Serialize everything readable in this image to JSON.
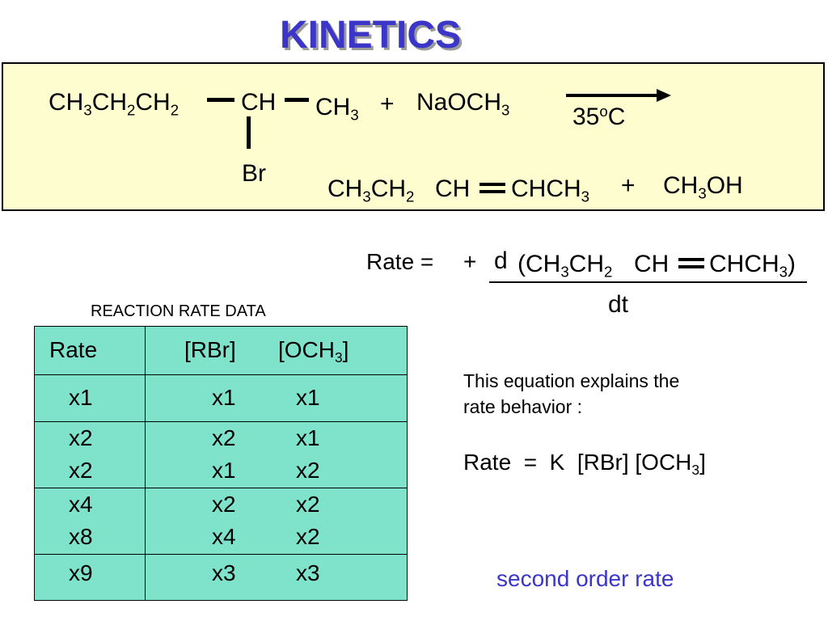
{
  "slide": {
    "title": "KINETICS",
    "reaction": {
      "reactant_chain": "CH3CH2CH2",
      "reactant_center": "CH",
      "reactant_end": "CH3",
      "substituent": "Br",
      "plus_1": "+",
      "reagent": "NaOCH3",
      "condition": "35oC",
      "product_left": "CH3CH2",
      "product_center": "CH",
      "product_right": "CHCH3",
      "plus_2": "+",
      "byproduct": "CH3OH"
    },
    "rate_equation": {
      "lhs": "Rate =",
      "sign": "+",
      "numerator_d": "d",
      "numerator_species": "(CH3CH2 CH=CHCH3)",
      "denominator": "dt"
    },
    "table": {
      "caption": "REACTION RATE DATA",
      "headers": [
        "Rate",
        "[RBr]",
        "[OCH3]"
      ],
      "groups": [
        [
          [
            "x1",
            "x1",
            "x1"
          ]
        ],
        [
          [
            "x2",
            "x2",
            "x1"
          ],
          [
            "x2",
            "x1",
            "x2"
          ]
        ],
        [
          [
            "x4",
            "x2",
            "x2"
          ],
          [
            "x8",
            "x4",
            "x2"
          ]
        ],
        [
          [
            "x9",
            "x3",
            "x3"
          ]
        ]
      ]
    },
    "explanation": {
      "line1": "This equation explains the",
      "line2": "rate behavior :",
      "rate_law": "Rate = K [RBr] [OCH3]"
    },
    "conclusion": "second order rate"
  },
  "colors": {
    "title": "#3b36c8",
    "reaction_box": "#fdfdd0",
    "table_fill": "#7fe3cc",
    "conclusion": "#3b36c8"
  }
}
